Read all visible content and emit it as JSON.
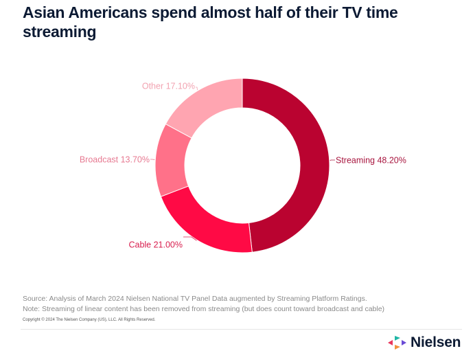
{
  "title": "Asian Americans spend almost half of their TV time streaming",
  "chart_data": {
    "type": "pie",
    "variant": "donut",
    "title": "Asian Americans spend almost half of their TV time streaming",
    "slices": [
      {
        "label": "Streaming",
        "value": 48.2,
        "display": "Streaming 48.20%",
        "color": "#BA0330",
        "label_color": "#A8163F"
      },
      {
        "label": "Cable",
        "value": 21.0,
        "display": "Cable 21.00%",
        "color": "#FF0A45",
        "label_color": "#D81E4E"
      },
      {
        "label": "Broadcast",
        "value": 13.7,
        "display": "Broadcast 13.70%",
        "color": "#FF7189",
        "label_color": "#E77A92"
      },
      {
        "label": "Other",
        "value": 17.1,
        "display": "Other 17.10%",
        "color": "#FFA5B1",
        "label_color": "#F2A3B1"
      }
    ],
    "start_angle": "12 o'clock",
    "direction": "clockwise",
    "legend": "none (direct labels)"
  },
  "footer": {
    "source": "Source: Analysis of March 2024 Nielsen National TV Panel Data augmented by Streaming Platform Ratings.",
    "note": "Note: Streaming of linear content has been removed from streaming (but does count toward broadcast and cable)",
    "copyright": "Copyright © 2024 The Nielsen Company (US), LLC. All Rights Reserved."
  },
  "brand": {
    "name": "Nielsen",
    "logo_icon": "nielsen-arrows-icon"
  }
}
